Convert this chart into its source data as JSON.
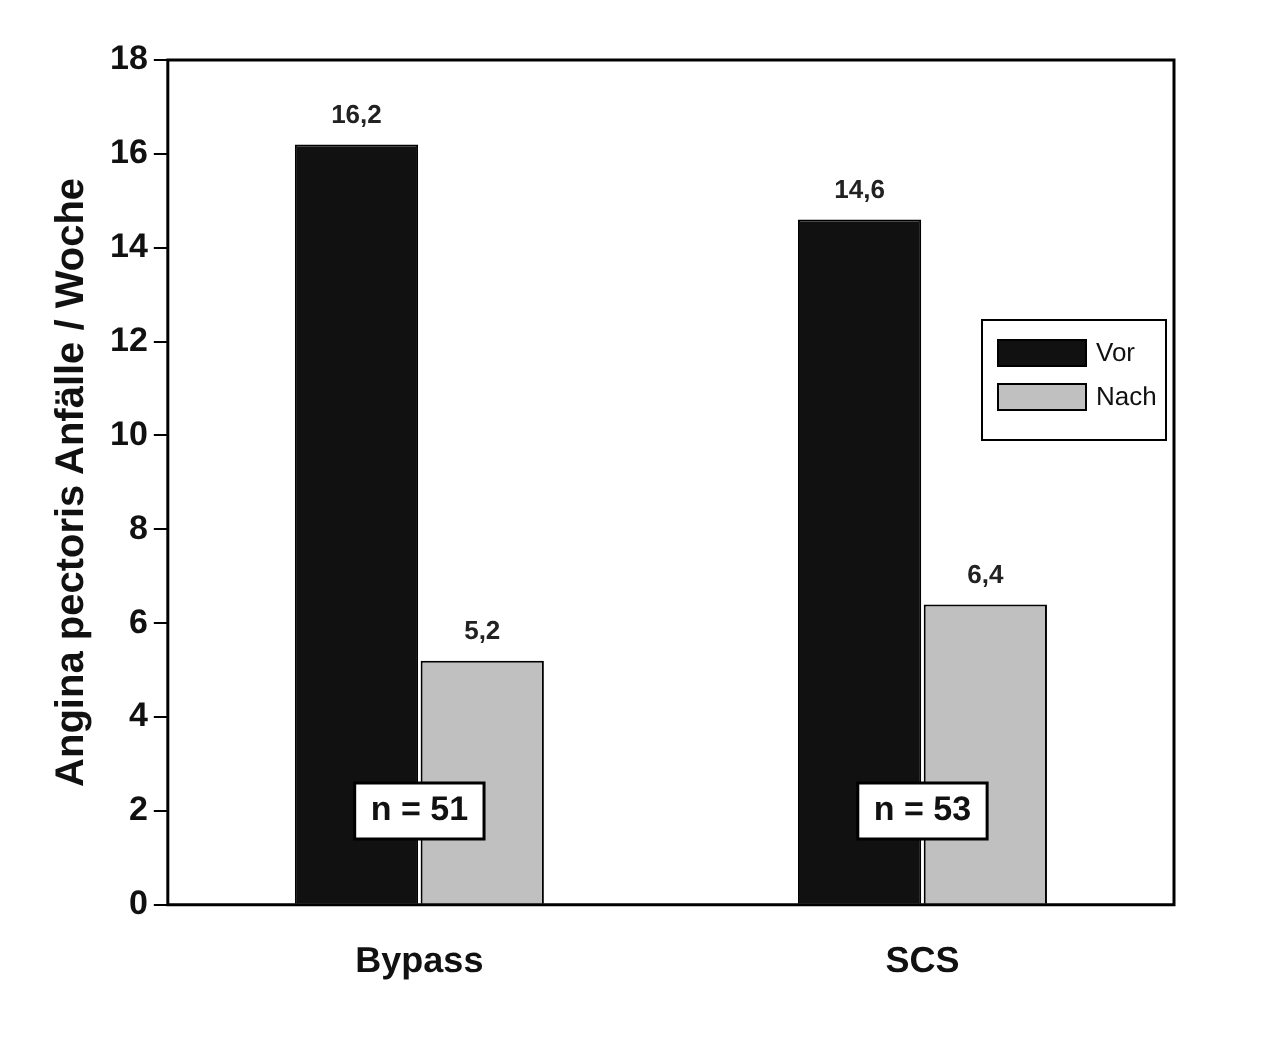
{
  "chart_data": {
    "type": "bar",
    "ylabel": "Angina pectoris Anfälle / Woche",
    "categories": [
      "Bypass",
      "SCS"
    ],
    "series": [
      {
        "name": "Vor",
        "color": "#111111",
        "values": [
          16.2,
          14.6
        ],
        "value_labels": [
          "16,2",
          "14,6"
        ]
      },
      {
        "name": "Nach",
        "color": "#c0c0c0",
        "values": [
          5.2,
          6.4
        ],
        "value_labels": [
          "5,2",
          "6,4"
        ]
      }
    ],
    "ylim": [
      0,
      18
    ],
    "yticks": [
      0,
      2,
      4,
      6,
      8,
      10,
      12,
      14,
      16,
      18
    ],
    "grid": false,
    "legend": "top right",
    "annotations": [
      {
        "text": "n = 51",
        "x": "Bypass",
        "y": 2
      },
      {
        "text": "n = 53",
        "x": "SCS",
        "y": 2
      }
    ]
  }
}
